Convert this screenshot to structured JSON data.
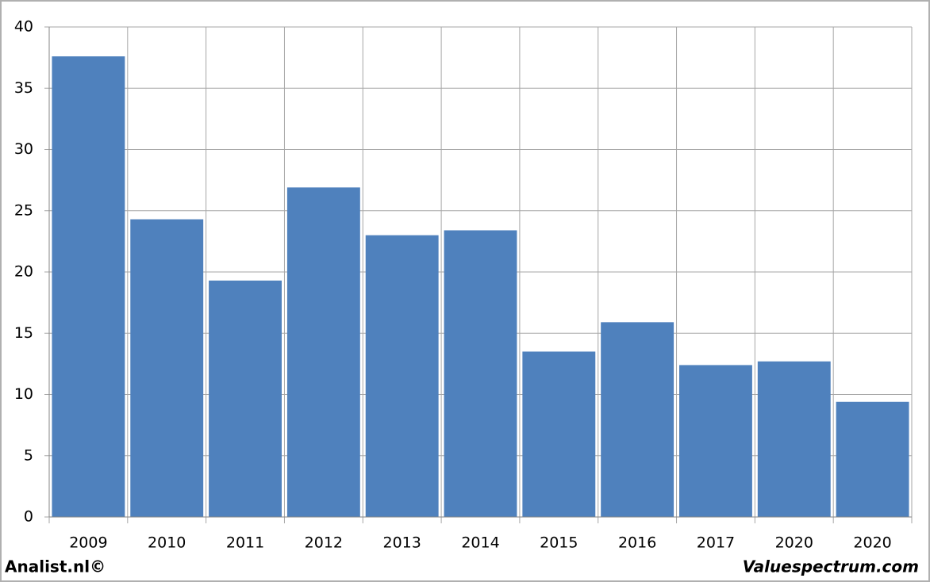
{
  "chart_data": {
    "type": "bar",
    "categories": [
      "2009",
      "2010",
      "2011",
      "2012",
      "2013",
      "2014",
      "2015",
      "2016",
      "2017",
      "2020",
      "2020"
    ],
    "values": [
      37.6,
      24.3,
      19.3,
      26.9,
      23.0,
      23.4,
      13.5,
      15.9,
      12.4,
      12.7,
      9.4
    ],
    "color": "#4f81bd",
    "ylim": [
      0,
      40
    ],
    "yticks": [
      0,
      5,
      10,
      15,
      20,
      25,
      30,
      35,
      40
    ],
    "grid": true,
    "footer_left": "Analist.nl©",
    "footer_right": "Valuespectrum.com"
  }
}
